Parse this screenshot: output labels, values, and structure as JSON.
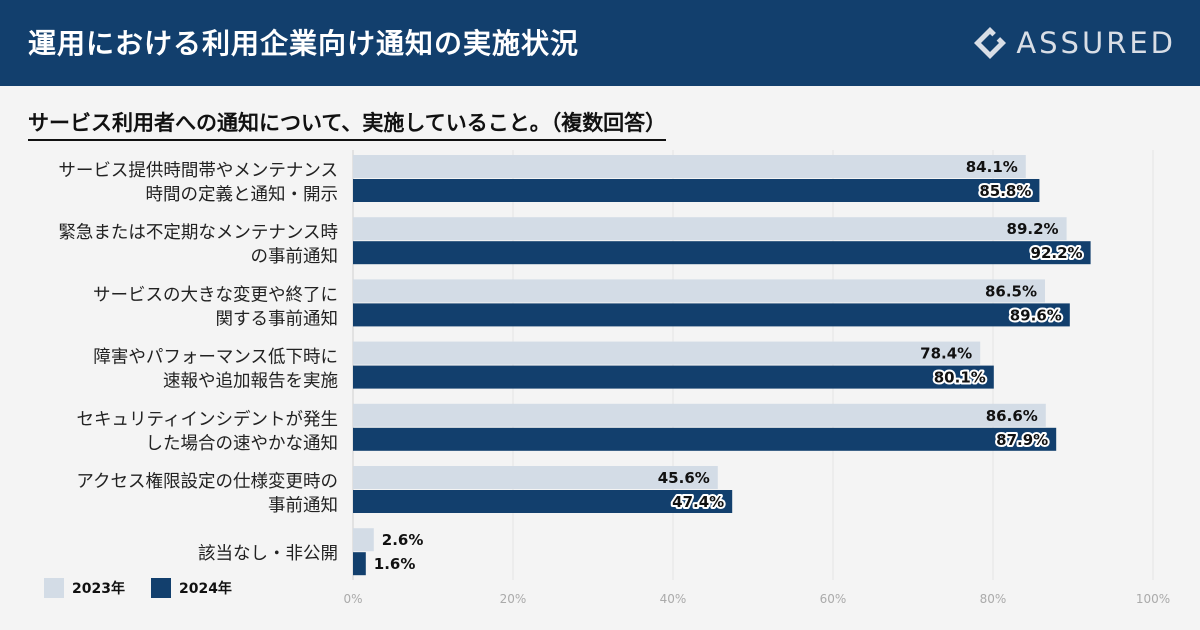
{
  "header": {
    "title": "運用における利用企業向け通知の実施状況",
    "logo_text": "ASSURED"
  },
  "subtitle": "サービス利用者への通知について、実施していること。（複数回答）",
  "legend": [
    {
      "label": "2023年",
      "color": "#d3dce6"
    },
    {
      "label": "2024年",
      "color": "#123f6d"
    }
  ],
  "chart_data": {
    "type": "bar",
    "orientation": "horizontal",
    "title": "サービス利用者への通知について、実施していること。（複数回答）",
    "categories": [
      [
        "サービス提供時間帯やメンテナンス",
        "時間の定義と通知・開示"
      ],
      [
        "緊急または不定期なメンテナンス時",
        "の事前通知"
      ],
      [
        "サービスの大きな変更や終了に",
        "関する事前通知"
      ],
      [
        "障害やパフォーマンス低下時に",
        "速報や追加報告を実施"
      ],
      [
        "セキュリティインシデントが発生",
        "した場合の速やかな通知"
      ],
      [
        "アクセス権限設定の仕様変更時の",
        "事前通知"
      ],
      [
        "該当なし・非公開"
      ]
    ],
    "series": [
      {
        "name": "2023年",
        "values": [
          84.1,
          89.2,
          86.5,
          78.4,
          86.6,
          45.6,
          2.6
        ],
        "labels": [
          "84.1%",
          "89.2%",
          "86.5%",
          "78.4%",
          "86.6%",
          "45.6%",
          "2.6%"
        ],
        "color": "#d3dce6"
      },
      {
        "name": "2024年",
        "values": [
          85.8,
          92.2,
          89.6,
          80.1,
          87.9,
          47.4,
          1.6
        ],
        "labels": [
          "85.8%",
          "92.2%",
          "89.6%",
          "80.1%",
          "87.9%",
          "47.4%",
          "1.6%"
        ],
        "color": "#123f6d"
      }
    ],
    "xticks": [
      "0%",
      "20%",
      "40%",
      "60%",
      "80%",
      "100%"
    ],
    "xlim": [
      0,
      100
    ],
    "grid": true
  }
}
